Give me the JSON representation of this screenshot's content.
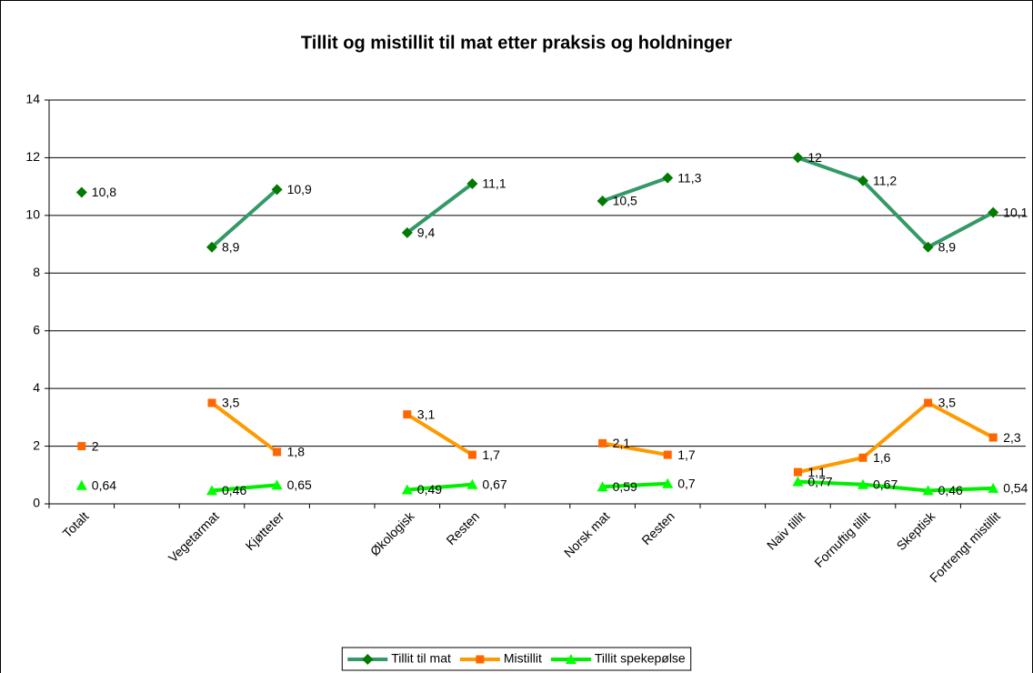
{
  "chart_data": {
    "type": "line",
    "title": "Tillit og mistillit til mat etter praksis og holdninger",
    "categories": [
      "Totalt",
      null,
      "Vegetarmat",
      "Kjøtteter",
      null,
      "Økologisk",
      "Resten",
      null,
      "Norsk mat",
      "Resten",
      null,
      "Naiv tillit",
      "Fornuftig tillit",
      "Skeptisk",
      "Fortrengt mistillit"
    ],
    "series": [
      {
        "name": "Tillit til mat",
        "color": "#339966",
        "marker_color": "#007a00",
        "marker": "diamond",
        "values": [
          10.8,
          null,
          8.9,
          10.9,
          null,
          9.4,
          11.1,
          null,
          10.5,
          11.3,
          null,
          12,
          11.2,
          8.9,
          10.1
        ],
        "value_labels": [
          "10,8",
          null,
          "8,9",
          "10,9",
          null,
          "9,4",
          "11,1",
          null,
          "10,5",
          "11,3",
          null,
          "12",
          "11,2",
          "8,9",
          "10,1"
        ]
      },
      {
        "name": "Mistillit",
        "color": "#ff9900",
        "marker_color": "#ff6600",
        "marker": "square",
        "values": [
          2,
          null,
          3.5,
          1.8,
          null,
          3.1,
          1.7,
          null,
          2.1,
          1.7,
          null,
          1.1,
          1.6,
          3.5,
          2.3
        ],
        "value_labels": [
          "2",
          null,
          "3,5",
          "1,8",
          null,
          "3,1",
          "1,7",
          null,
          "2,1",
          "1,7",
          null,
          "1,1",
          "1,6",
          "3,5",
          "2,3"
        ]
      },
      {
        "name": "Tillit spekepølse",
        "color": "#00ee00",
        "marker_color": "#00ff00",
        "marker": "triangle",
        "values": [
          0.64,
          null,
          0.46,
          0.65,
          null,
          0.49,
          0.67,
          null,
          0.59,
          0.7,
          null,
          0.77,
          0.67,
          0.46,
          0.54
        ],
        "value_labels": [
          "0,64",
          null,
          "0,46",
          "0,65",
          null,
          "0,49",
          "0,67",
          null,
          "0,59",
          "0,7",
          null,
          "0,77",
          "0,67",
          "0,46",
          "0,54"
        ]
      }
    ],
    "ylim": [
      0,
      14
    ],
    "yticks": [
      0,
      2,
      4,
      6,
      8,
      10,
      12,
      14
    ],
    "grid": true,
    "legend": "bottom"
  }
}
